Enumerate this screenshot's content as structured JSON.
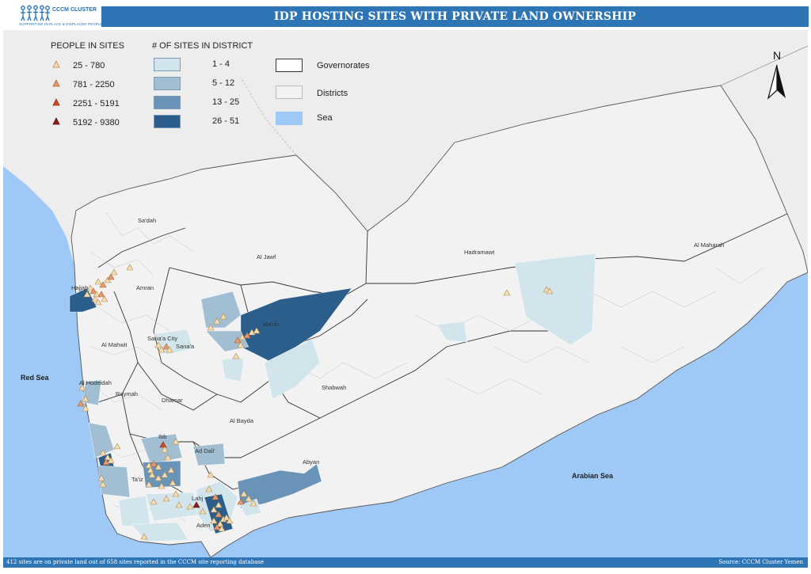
{
  "logo": {
    "title": "CCCM CLUSTER",
    "subtitle": "SUPPORTING IN PLACE & DISPLACED PEOPLE"
  },
  "title": "IDP HOSTING SITES WITH PRIVATE LAND OWNERSHIP",
  "legend": {
    "people_heading": "PEOPLE IN SITES",
    "people": [
      {
        "label": "25 - 780",
        "color": "#f4dcb4"
      },
      {
        "label": "781 - 2250",
        "color": "#e8996a"
      },
      {
        "label": "2251 - 5191",
        "color": "#cf4a22"
      },
      {
        "label": "5192 - 9380",
        "color": "#8b1a1a"
      }
    ],
    "sites_heading": "# OF SITES IN DISTRICT",
    "sites": [
      {
        "label": "1 - 4",
        "color": "#d3e5ec"
      },
      {
        "label": "5 - 12",
        "color": "#a1bed2"
      },
      {
        "label": "13 - 25",
        "color": "#6a93b8"
      },
      {
        "label": "26 - 51",
        "color": "#2b5e8b"
      }
    ],
    "layers": [
      {
        "label": "Governorates",
        "kind": "governorates"
      },
      {
        "label": "Districts",
        "kind": "districts"
      },
      {
        "label": "Sea",
        "kind": "sea",
        "color": "#9ec8f5"
      }
    ]
  },
  "north": "N",
  "map": {
    "labels": [
      "Sa'dah",
      "Al Jawf",
      "Hadramawt",
      "Al Maharah",
      "Amran",
      "Hajjah",
      "Ma'rib",
      "Sana'a City",
      "Sana'a",
      "Al Mahwit",
      "Al Hodeidah",
      "Raymah",
      "Dhamar",
      "Shabwah",
      "Al Bayda",
      "Ibb",
      "Ad Dali'",
      "Abyan",
      "Ta'iz",
      "Lahj",
      "Aden",
      "Red Sea",
      "Arabian Sea"
    ]
  },
  "footer": {
    "note": "412 sites are on private land out of 658 sites reported in the CCCM site reporting database",
    "source": "Source: CCCM Cluster Yemen"
  }
}
